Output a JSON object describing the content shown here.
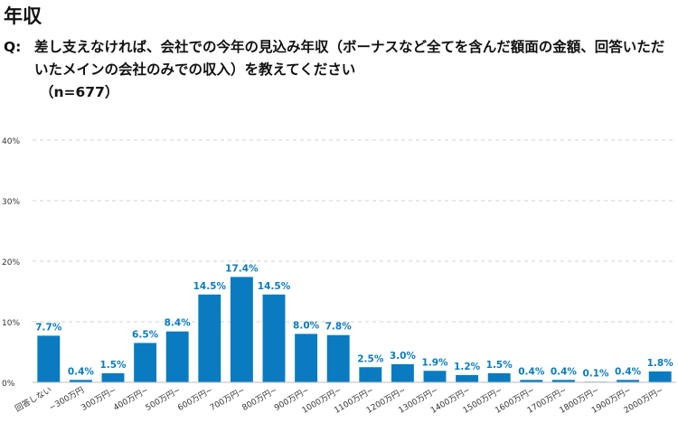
{
  "page": {
    "title": "年収",
    "question_prefix": "Q:",
    "question_text": "差し支えなければ、会社での今年の見込み年収（ボーナスなど全てを含んだ額面の金額、回答いただいたメインの会社のみでの収入）を教えてください",
    "sample_size": "（n=677）"
  },
  "chart_data": {
    "type": "bar",
    "categories": [
      "回答しない",
      "~300万円",
      "300万円~",
      "400万円~",
      "500万円~",
      "600万円~",
      "700万円~",
      "800万円~",
      "900万円~",
      "1000万円~",
      "1100万円~",
      "1200万円~",
      "1300万円~",
      "1400万円~",
      "1500万円~",
      "1600万円~",
      "1700万円~",
      "1800万円~",
      "1900万円~",
      "2000万円~"
    ],
    "values": [
      7.7,
      0.4,
      1.5,
      6.5,
      8.4,
      14.5,
      17.4,
      14.5,
      8.0,
      7.8,
      2.5,
      3.0,
      1.9,
      1.2,
      1.5,
      0.4,
      0.4,
      0.1,
      0.4,
      1.8
    ],
    "value_labels": [
      "7.7%",
      "0.4%",
      "1.5%",
      "6.5%",
      "8.4%",
      "14.5%",
      "17.4%",
      "14.5%",
      "8.0%",
      "7.8%",
      "2.5%",
      "3.0%",
      "1.9%",
      "1.2%",
      "1.5%",
      "0.4%",
      "0.4%",
      "0.1%",
      "0.4%",
      "1.8%"
    ],
    "yticks": [
      0,
      10,
      20,
      30,
      40
    ],
    "ytick_labels": [
      "0%",
      "10%",
      "20%",
      "30%",
      "40%"
    ],
    "ylim": [
      0,
      40
    ],
    "grid": true,
    "bar_color": "#0a7bc0",
    "label_color": "#0a7bc0",
    "grid_color": "#d0d0d0",
    "xlabel": "",
    "ylabel": ""
  }
}
